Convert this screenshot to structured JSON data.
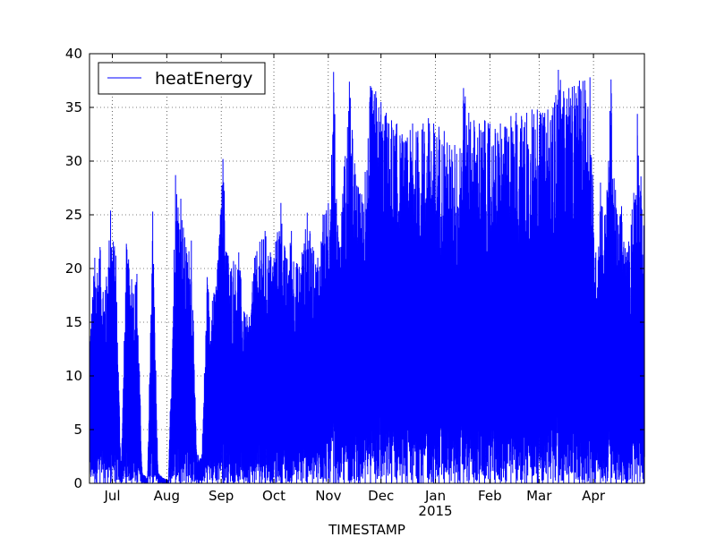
{
  "chart_data": {
    "type": "line",
    "title": "",
    "xlabel": "TIMESTAMP",
    "ylabel": "",
    "ylim": [
      0,
      40
    ],
    "xlim": [
      "2014-06-18",
      "2015-04-30"
    ],
    "grid": true,
    "legend_position": "top-left",
    "yticks": [
      0,
      5,
      10,
      15,
      20,
      25,
      30,
      35,
      40
    ],
    "xticks": [
      {
        "date": "2014-07-01",
        "label": "Jul"
      },
      {
        "date": "2014-08-01",
        "label": "Aug"
      },
      {
        "date": "2014-09-01",
        "label": "Sep"
      },
      {
        "date": "2014-10-01",
        "label": "Oct"
      },
      {
        "date": "2014-11-01",
        "label": "Nov"
      },
      {
        "date": "2014-12-01",
        "label": "Dec"
      },
      {
        "date": "2015-01-01",
        "label": "Jan"
      },
      {
        "date": "2015-02-01",
        "label": "Feb"
      },
      {
        "date": "2015-03-01",
        "label": "Mar"
      },
      {
        "date": "2015-04-01",
        "label": "Apr"
      }
    ],
    "year_label": {
      "date": "2015-01-01",
      "label": "2015"
    },
    "series": [
      {
        "name": "heatEnergy",
        "color": "#0000ff",
        "envelope_max": [
          {
            "x": "2014-06-18",
            "y": 14
          },
          {
            "x": "2014-06-21",
            "y": 21
          },
          {
            "x": "2014-06-24",
            "y": 22
          },
          {
            "x": "2014-06-27",
            "y": 18
          },
          {
            "x": "2014-06-30",
            "y": 25.4
          },
          {
            "x": "2014-07-03",
            "y": 21.2
          },
          {
            "x": "2014-07-06",
            "y": 1
          },
          {
            "x": "2014-07-09",
            "y": 22.3
          },
          {
            "x": "2014-07-12",
            "y": 19
          },
          {
            "x": "2014-07-15",
            "y": 19.5
          },
          {
            "x": "2014-07-18",
            "y": 1
          },
          {
            "x": "2014-07-21",
            "y": 0.5
          },
          {
            "x": "2014-07-24",
            "y": 25.3
          },
          {
            "x": "2014-07-27",
            "y": 1
          },
          {
            "x": "2014-07-30",
            "y": 0.5
          },
          {
            "x": "2014-08-02",
            "y": 0.3
          },
          {
            "x": "2014-08-06",
            "y": 28.7
          },
          {
            "x": "2014-08-09",
            "y": 26.5
          },
          {
            "x": "2014-08-12",
            "y": 22
          },
          {
            "x": "2014-08-15",
            "y": 22.6
          },
          {
            "x": "2014-08-18",
            "y": 2.7
          },
          {
            "x": "2014-08-21",
            "y": 2.7
          },
          {
            "x": "2014-08-24",
            "y": 19.2
          },
          {
            "x": "2014-08-27",
            "y": 17
          },
          {
            "x": "2014-08-30",
            "y": 20.5
          },
          {
            "x": "2014-09-02",
            "y": 30.2
          },
          {
            "x": "2014-09-05",
            "y": 21.2
          },
          {
            "x": "2014-09-08",
            "y": 20.7
          },
          {
            "x": "2014-09-11",
            "y": 21.5
          },
          {
            "x": "2014-09-14",
            "y": 16
          },
          {
            "x": "2014-09-17",
            "y": 15.5
          },
          {
            "x": "2014-09-20",
            "y": 21
          },
          {
            "x": "2014-09-23",
            "y": 22.5
          },
          {
            "x": "2014-09-26",
            "y": 23.5
          },
          {
            "x": "2014-09-29",
            "y": 21.5
          },
          {
            "x": "2014-10-02",
            "y": 22.5
          },
          {
            "x": "2014-10-05",
            "y": 26.1
          },
          {
            "x": "2014-10-08",
            "y": 21
          },
          {
            "x": "2014-10-11",
            "y": 23.5
          },
          {
            "x": "2014-10-14",
            "y": 20.5
          },
          {
            "x": "2014-10-17",
            "y": 21.5
          },
          {
            "x": "2014-10-20",
            "y": 25.2
          },
          {
            "x": "2014-10-23",
            "y": 22
          },
          {
            "x": "2014-10-26",
            "y": 21
          },
          {
            "x": "2014-10-29",
            "y": 25
          },
          {
            "x": "2014-11-01",
            "y": 26.1
          },
          {
            "x": "2014-11-04",
            "y": 38.3
          },
          {
            "x": "2014-11-07",
            "y": 22.5
          },
          {
            "x": "2014-11-10",
            "y": 29.5
          },
          {
            "x": "2014-11-13",
            "y": 37.4
          },
          {
            "x": "2014-11-16",
            "y": 29.8
          },
          {
            "x": "2014-11-19",
            "y": 27
          },
          {
            "x": "2014-11-22",
            "y": 29
          },
          {
            "x": "2014-11-25",
            "y": 37
          },
          {
            "x": "2014-11-28",
            "y": 36.5
          },
          {
            "x": "2014-12-01",
            "y": 35.5
          },
          {
            "x": "2014-12-04",
            "y": 34.5
          },
          {
            "x": "2014-12-07",
            "y": 33.8
          },
          {
            "x": "2014-12-10",
            "y": 33.5
          },
          {
            "x": "2014-12-13",
            "y": 32.5
          },
          {
            "x": "2014-12-16",
            "y": 32.2
          },
          {
            "x": "2014-12-19",
            "y": 33.5
          },
          {
            "x": "2014-12-22",
            "y": 32.8
          },
          {
            "x": "2014-12-25",
            "y": 33.5
          },
          {
            "x": "2014-12-28",
            "y": 34
          },
          {
            "x": "2014-12-31",
            "y": 33.5
          },
          {
            "x": "2015-01-03",
            "y": 33.2
          },
          {
            "x": "2015-01-06",
            "y": 32.8
          },
          {
            "x": "2015-01-09",
            "y": 31.5
          },
          {
            "x": "2015-01-12",
            "y": 31.5
          },
          {
            "x": "2015-01-15",
            "y": 31.2
          },
          {
            "x": "2015-01-17",
            "y": 36.8
          },
          {
            "x": "2015-01-20",
            "y": 34.5
          },
          {
            "x": "2015-01-23",
            "y": 33.8
          },
          {
            "x": "2015-01-26",
            "y": 33.5
          },
          {
            "x": "2015-01-29",
            "y": 33.8
          },
          {
            "x": "2015-02-01",
            "y": 33.5
          },
          {
            "x": "2015-02-04",
            "y": 33
          },
          {
            "x": "2015-02-07",
            "y": 33.5
          },
          {
            "x": "2015-02-10",
            "y": 33.2
          },
          {
            "x": "2015-02-13",
            "y": 34.2
          },
          {
            "x": "2015-02-16",
            "y": 34.5
          },
          {
            "x": "2015-02-19",
            "y": 34.2
          },
          {
            "x": "2015-02-22",
            "y": 34.5
          },
          {
            "x": "2015-02-25",
            "y": 34.8
          },
          {
            "x": "2015-02-28",
            "y": 34.8
          },
          {
            "x": "2015-03-03",
            "y": 34.5
          },
          {
            "x": "2015-03-06",
            "y": 34.8
          },
          {
            "x": "2015-03-09",
            "y": 35
          },
          {
            "x": "2015-03-12",
            "y": 38.5
          },
          {
            "x": "2015-03-15",
            "y": 36.5
          },
          {
            "x": "2015-03-18",
            "y": 36.8
          },
          {
            "x": "2015-03-21",
            "y": 37
          },
          {
            "x": "2015-03-24",
            "y": 37.5
          },
          {
            "x": "2015-03-27",
            "y": 37.5
          },
          {
            "x": "2015-03-30",
            "y": 37.8
          },
          {
            "x": "2015-04-02",
            "y": 21
          },
          {
            "x": "2015-04-05",
            "y": 28
          },
          {
            "x": "2015-04-08",
            "y": 25
          },
          {
            "x": "2015-04-11",
            "y": 37.6
          },
          {
            "x": "2015-04-14",
            "y": 25.5
          },
          {
            "x": "2015-04-17",
            "y": 25.8
          },
          {
            "x": "2015-04-20",
            "y": 21.5
          },
          {
            "x": "2015-04-23",
            "y": 25.5
          },
          {
            "x": "2015-04-26",
            "y": 34.4
          },
          {
            "x": "2015-04-30",
            "y": 23.2
          }
        ]
      }
    ]
  }
}
